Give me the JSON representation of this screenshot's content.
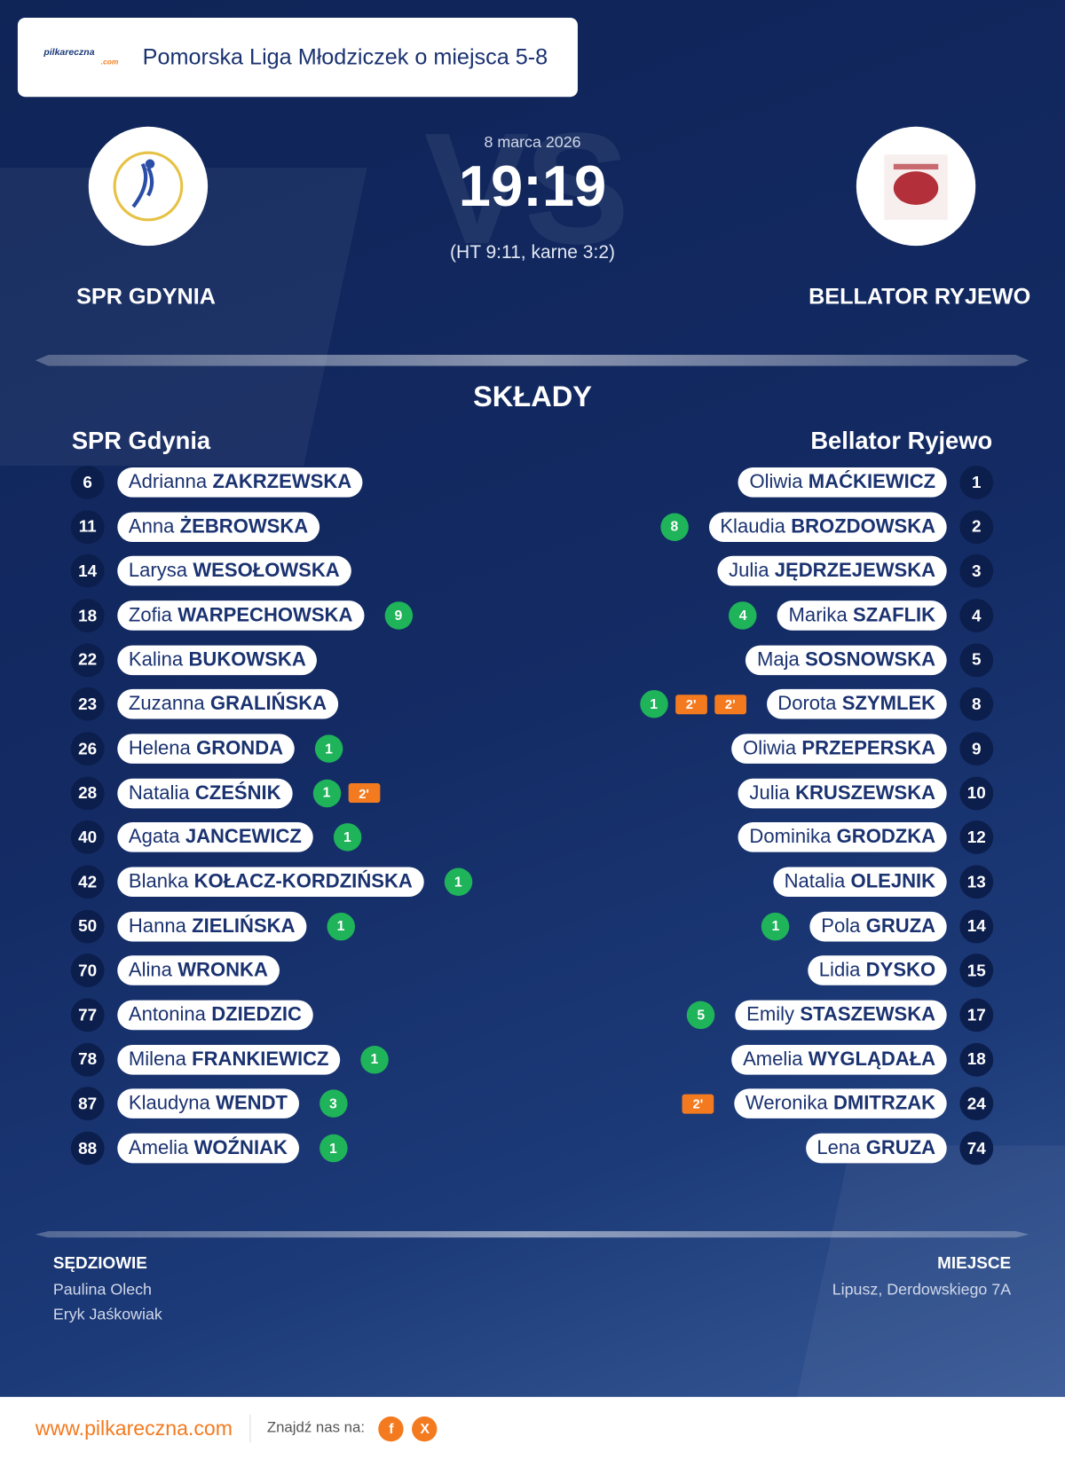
{
  "header": {
    "logo_main": "pilkareczna",
    "logo_sub": ".com",
    "league": "Pomorska Liga Młodziczek o miejsca 5-8"
  },
  "match": {
    "date": "8 marca 2026",
    "score": "19:19",
    "details": "(HT 9:11, karne 3:2)",
    "vs": "VS"
  },
  "home": {
    "name": "SPR GDYNIA"
  },
  "away": {
    "name": "BELLATOR RYJEWO"
  },
  "lineups": {
    "title": "SKŁADY",
    "home": {
      "team": "SPR Gdynia",
      "players": [
        {
          "number": 6,
          "first": "Adrianna",
          "last": "ZAKRZEWSKA"
        },
        {
          "number": 11,
          "first": "Anna",
          "last": "ŻEBROWSKA"
        },
        {
          "number": 14,
          "first": "Larysa",
          "last": "WESOŁOWSKA"
        },
        {
          "number": 18,
          "first": "Zofia",
          "last": "WARPECHOWSKA",
          "goals": 9
        },
        {
          "number": 22,
          "first": "Kalina",
          "last": "BUKOWSKA"
        },
        {
          "number": 23,
          "first": "Zuzanna",
          "last": "GRALIŃSKA"
        },
        {
          "number": 26,
          "first": "Helena",
          "last": "GRONDA",
          "goals": 1
        },
        {
          "number": 28,
          "first": "Natalia",
          "last": "CZEŚNIK",
          "goals": 1,
          "suspensions": [
            "2'"
          ]
        },
        {
          "number": 40,
          "first": "Agata",
          "last": "JANCEWICZ",
          "goals": 1
        },
        {
          "number": 42,
          "first": "Blanka",
          "last": "KOŁACZ-KORDZIŃSKA",
          "goals": 1
        },
        {
          "number": 50,
          "first": "Hanna",
          "last": "ZIELIŃSKA",
          "goals": 1
        },
        {
          "number": 70,
          "first": "Alina",
          "last": "WRONKA"
        },
        {
          "number": 77,
          "first": "Antonina",
          "last": "DZIEDZIC"
        },
        {
          "number": 78,
          "first": "Milena",
          "last": "FRANKIEWICZ",
          "goals": 1
        },
        {
          "number": 87,
          "first": "Klaudyna",
          "last": "WENDT",
          "goals": 3
        },
        {
          "number": 88,
          "first": "Amelia",
          "last": "WOŹNIAK",
          "goals": 1
        }
      ]
    },
    "away": {
      "team": "Bellator Ryjewo",
      "players": [
        {
          "number": 1,
          "first": "Oliwia",
          "last": "MAĆKIEWICZ"
        },
        {
          "number": 2,
          "first": "Klaudia",
          "last": "BROZDOWSKA",
          "goals": 8
        },
        {
          "number": 3,
          "first": "Julia",
          "last": "JĘDRZEJEWSKA"
        },
        {
          "number": 4,
          "first": "Marika",
          "last": "SZAFLIK",
          "goals": 4
        },
        {
          "number": 5,
          "first": "Maja",
          "last": "SOSNOWSKA"
        },
        {
          "number": 8,
          "first": "Dorota",
          "last": "SZYMLEK",
          "goals": 1,
          "suspensions": [
            "2'",
            "2'"
          ]
        },
        {
          "number": 9,
          "first": "Oliwia",
          "last": "PRZEPERSKA"
        },
        {
          "number": 10,
          "first": "Julia",
          "last": "KRUSZEWSKA"
        },
        {
          "number": 12,
          "first": "Dominika",
          "last": "GRODZKA"
        },
        {
          "number": 13,
          "first": "Natalia",
          "last": "OLEJNIK"
        },
        {
          "number": 14,
          "first": "Pola",
          "last": "GRUZA",
          "goals": 1
        },
        {
          "number": 15,
          "first": "Lidia",
          "last": "DYSKO"
        },
        {
          "number": 17,
          "first": "Emily",
          "last": "STASZEWSKA",
          "goals": 5
        },
        {
          "number": 18,
          "first": "Amelia",
          "last": "WYGLĄDAŁA"
        },
        {
          "number": 24,
          "first": "Weronika",
          "last": "DMITRZAK",
          "suspensions": [
            "2'"
          ]
        },
        {
          "number": 74,
          "first": "Lena",
          "last": "GRUZA"
        }
      ]
    }
  },
  "officials": {
    "title": "SĘDZIOWIE",
    "names": [
      "Paulina Olech",
      "Eryk Jaśkowiak"
    ]
  },
  "venue": {
    "title": "MIEJSCE",
    "address": "Lipusz, Derdowskiego 7A"
  },
  "footer": {
    "url": "www.pilkareczna.com",
    "find": "Znajdź nas na:",
    "social": [
      "f",
      "X"
    ]
  }
}
